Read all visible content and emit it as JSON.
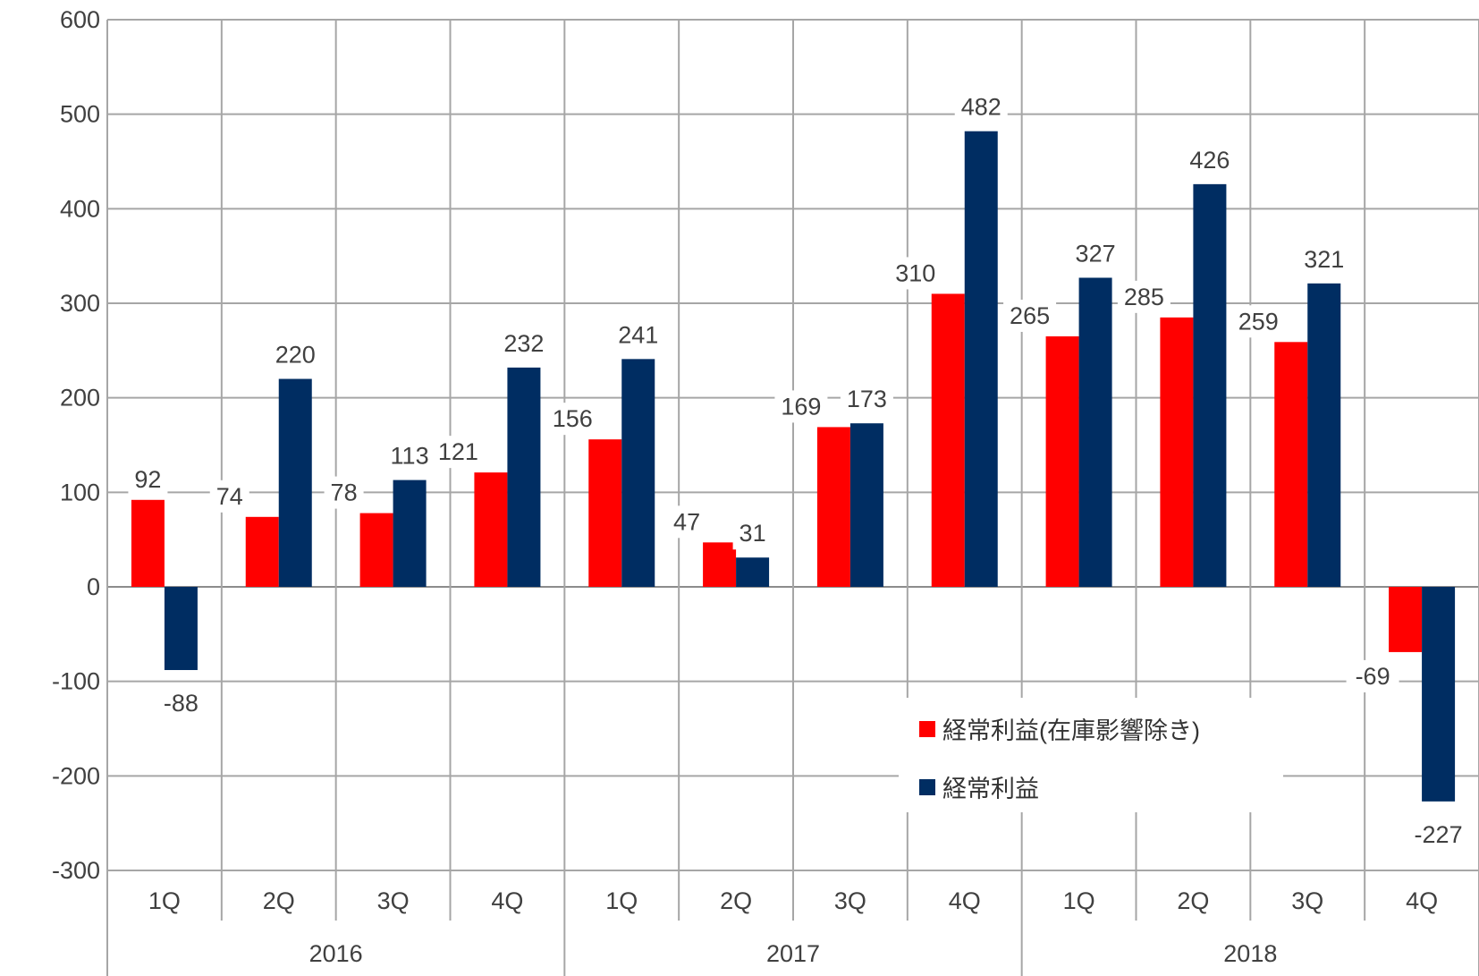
{
  "chart_data": {
    "type": "bar",
    "title": "",
    "xlabel": "",
    "ylabel": "",
    "ylim": [
      -300,
      600
    ],
    "yticks": [
      -300,
      -200,
      -100,
      0,
      100,
      200,
      300,
      400,
      500,
      600
    ],
    "grid": true,
    "legend": "inside-bottom-right",
    "groups": [
      {
        "label": "2016",
        "categories": [
          "1Q",
          "2Q",
          "3Q",
          "4Q"
        ]
      },
      {
        "label": "2017",
        "categories": [
          "1Q",
          "2Q",
          "3Q",
          "4Q"
        ]
      },
      {
        "label": "2018",
        "categories": [
          "1Q",
          "2Q",
          "3Q",
          "4Q"
        ]
      }
    ],
    "series": [
      {
        "name": "経常利益(在庫影響除き)",
        "color": "#ff0000",
        "values": [
          92,
          74,
          78,
          121,
          156,
          47,
          169,
          310,
          265,
          285,
          259,
          -69
        ]
      },
      {
        "name": "経常利益",
        "color": "#002d62",
        "values": [
          -88,
          220,
          113,
          232,
          241,
          31,
          173,
          482,
          327,
          426,
          321,
          -227
        ]
      }
    ]
  }
}
